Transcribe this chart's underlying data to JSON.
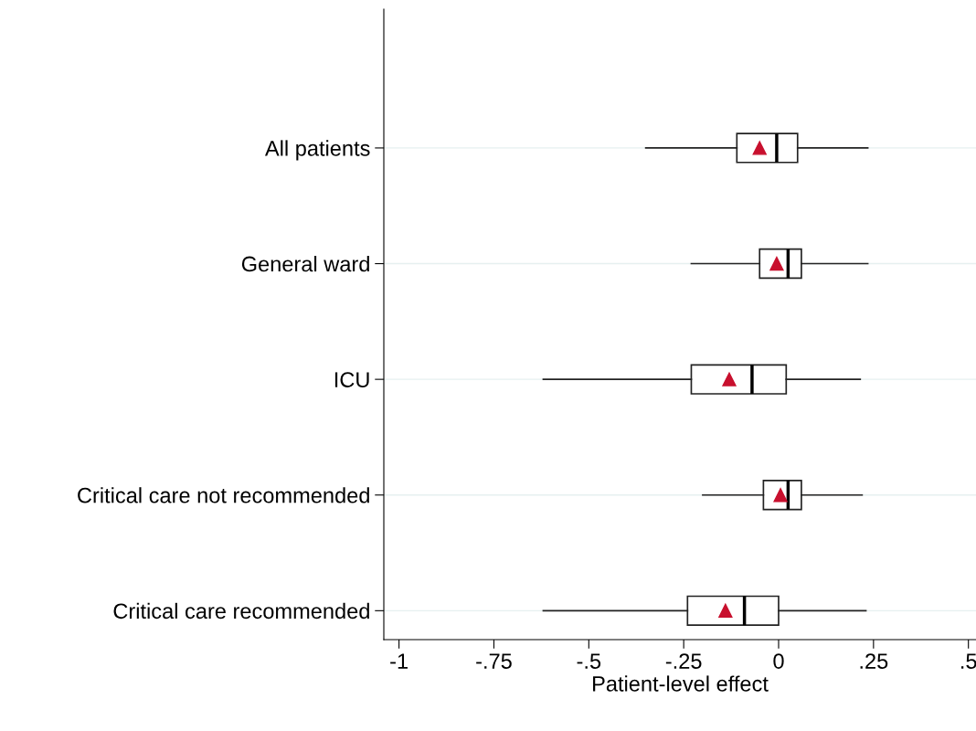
{
  "chart_data": {
    "type": "box",
    "orientation": "horizontal",
    "xlabel": "Patient-level effect",
    "categories": [
      "All patients",
      "General ward",
      "ICU",
      "Critical care not recommended",
      "Critical care recommended"
    ],
    "boxes": [
      {
        "low": -0.35,
        "q1": -0.11,
        "median": -0.005,
        "q3": 0.05,
        "high": 0.235,
        "mean": -0.05
      },
      {
        "low": -0.23,
        "q1": -0.05,
        "median": 0.025,
        "q3": 0.06,
        "high": 0.235,
        "mean": -0.005
      },
      {
        "low": -0.62,
        "q1": -0.23,
        "median": -0.07,
        "q3": 0.02,
        "high": 0.215,
        "mean": -0.13
      },
      {
        "low": -0.2,
        "q1": -0.04,
        "median": 0.025,
        "q3": 0.06,
        "high": 0.22,
        "mean": 0.005
      },
      {
        "low": -0.62,
        "q1": -0.24,
        "median": -0.09,
        "q3": 0.0,
        "high": 0.23,
        "mean": -0.14
      }
    ],
    "marker": "triangle",
    "xlim": [
      -1.04,
      0.52
    ],
    "xticks": [
      {
        "value": -1,
        "label": "-1"
      },
      {
        "value": -0.75,
        "label": "-.75"
      },
      {
        "value": -0.5,
        "label": "-.5"
      },
      {
        "value": -0.25,
        "label": "-.25"
      },
      {
        "value": 0,
        "label": "0"
      },
      {
        "value": 0.25,
        "label": ".25"
      },
      {
        "value": 0.5,
        "label": ".5"
      }
    ],
    "grid": "y"
  }
}
